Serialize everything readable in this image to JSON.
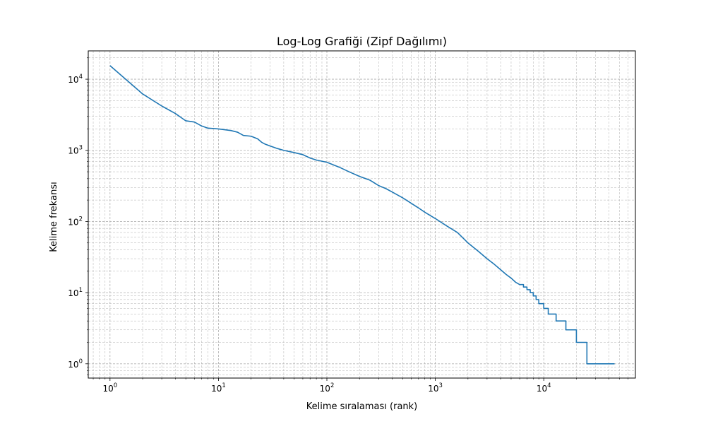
{
  "chart_data": {
    "type": "line",
    "title": "Log-Log Grafiği (Zipf Dağılımı)",
    "xlabel": "Kelime sıralaması (rank)",
    "ylabel": "Kelime frekansı",
    "x_scale": "log",
    "y_scale": "log",
    "xlim": [
      0.63,
      70000
    ],
    "ylim": [
      0.63,
      25000
    ],
    "grid": true,
    "grid_style": "dashed",
    "line_color": "#1f77b4",
    "x_ticks": [
      {
        "base": "10",
        "exp": "0",
        "value": 1
      },
      {
        "base": "10",
        "exp": "1",
        "value": 10
      },
      {
        "base": "10",
        "exp": "2",
        "value": 100
      },
      {
        "base": "10",
        "exp": "3",
        "value": 1000
      },
      {
        "base": "10",
        "exp": "4",
        "value": 10000
      }
    ],
    "y_ticks": [
      {
        "base": "10",
        "exp": "0",
        "value": 1
      },
      {
        "base": "10",
        "exp": "1",
        "value": 10
      },
      {
        "base": "10",
        "exp": "2",
        "value": 100
      },
      {
        "base": "10",
        "exp": "3",
        "value": 1000
      },
      {
        "base": "10",
        "exp": "4",
        "value": 10000
      }
    ],
    "series": [
      {
        "x": [
          1,
          2,
          3,
          4,
          5,
          6,
          7,
          8,
          10,
          13,
          15,
          17,
          20,
          23,
          25,
          27,
          30,
          35,
          40,
          50,
          60,
          70,
          80,
          100,
          130,
          160,
          200,
          250,
          300,
          350,
          400,
          500,
          600,
          700,
          800,
          1000,
          1300,
          1600,
          2000,
          2500,
          3000,
          3500,
          4000,
          4500,
          5000,
          5500,
          6000,
          6500,
          7000,
          7500,
          8000,
          8500,
          9000,
          10000,
          11000,
          12000,
          13000,
          14000,
          16000,
          18000,
          20000,
          22000,
          25000,
          30000,
          35000,
          40000,
          45000
        ],
        "y": [
          15500,
          6200,
          4200,
          3300,
          2600,
          2500,
          2200,
          2050,
          2000,
          1900,
          1800,
          1620,
          1580,
          1450,
          1300,
          1220,
          1150,
          1060,
          1000,
          930,
          870,
          780,
          730,
          680,
          580,
          500,
          430,
          380,
          320,
          290,
          260,
          215,
          180,
          155,
          135,
          110,
          85,
          70,
          50,
          38,
          30,
          25,
          21,
          18,
          16,
          14,
          13,
          12,
          11,
          10,
          9,
          8,
          7,
          6,
          5,
          5,
          4,
          4,
          3,
          3,
          2,
          2,
          1,
          1,
          1,
          1,
          1
        ]
      }
    ]
  }
}
